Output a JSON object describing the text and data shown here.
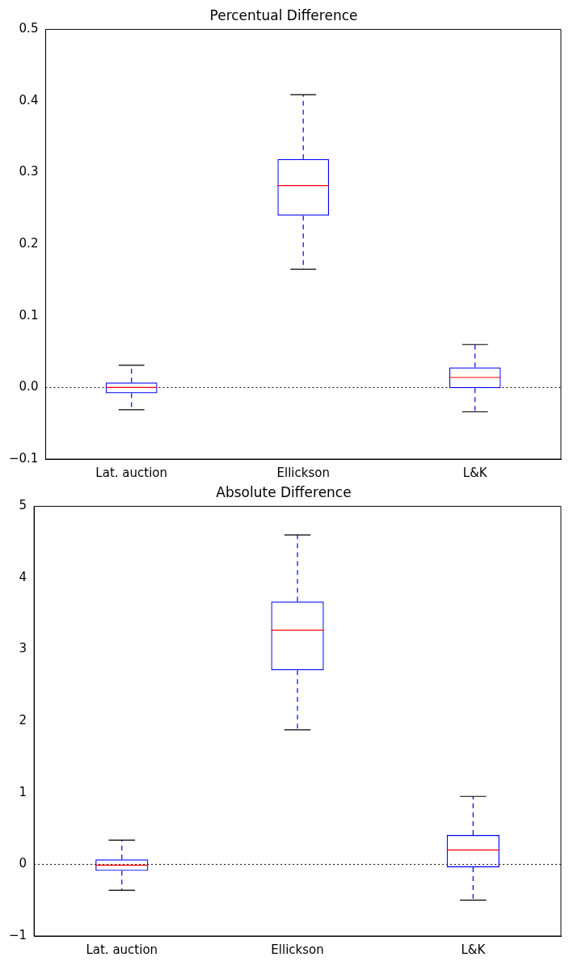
{
  "chart_data": [
    {
      "type": "box",
      "title": "Percentual Difference",
      "categories": [
        "Lat. auction",
        "Ellickson",
        "L&K"
      ],
      "ylim": [
        -0.1,
        0.5
      ],
      "yticks": [
        {
          "value": -0.1,
          "label": "−0.1"
        },
        {
          "value": 0,
          "label": "0.0"
        },
        {
          "value": 0.1,
          "label": "0.1"
        },
        {
          "value": 0.2,
          "label": "0.2"
        },
        {
          "value": 0.3,
          "label": "0.3"
        },
        {
          "value": 0.4,
          "label": "0.4"
        },
        {
          "value": 0.5,
          "label": "0.5"
        }
      ],
      "series": [
        {
          "color": "#0000ff",
          "boxes": [
            {
              "low": -0.031,
              "q1": -0.008,
              "median": 0.0,
              "q3": 0.007,
              "high": 0.031
            },
            {
              "low": 0.165,
              "q1": 0.24,
              "median": 0.282,
              "q3": 0.319,
              "high": 0.409
            },
            {
              "low": -0.034,
              "q1": -0.001,
              "median": 0.014,
              "q3": 0.028,
              "high": 0.06
            }
          ]
        }
      ],
      "ref_lines": [
        {
          "axis": "y",
          "value": 0,
          "color": "#000000",
          "line_style": "dotted"
        }
      ]
    },
    {
      "type": "box",
      "title": "Absolute Difference",
      "categories": [
        "Lat. auction",
        "Ellickson",
        "L&K"
      ],
      "ylim": [
        -1,
        5
      ],
      "yticks": [
        {
          "value": -1,
          "label": "−1"
        },
        {
          "value": 0,
          "label": "0"
        },
        {
          "value": 1,
          "label": "1"
        },
        {
          "value": 2,
          "label": "2"
        },
        {
          "value": 3,
          "label": "3"
        },
        {
          "value": 4,
          "label": "4"
        },
        {
          "value": 5,
          "label": "5"
        }
      ],
      "series": [
        {
          "color": "#0000ff",
          "boxes": [
            {
              "low": -0.36,
              "q1": -0.09,
              "median": -0.01,
              "q3": 0.07,
              "high": 0.34
            },
            {
              "low": 1.88,
              "q1": 2.71,
              "median": 3.27,
              "q3": 3.67,
              "high": 4.6
            },
            {
              "low": -0.5,
              "q1": -0.04,
              "median": 0.2,
              "q3": 0.41,
              "high": 0.95
            }
          ]
        }
      ],
      "ref_lines": [
        {
          "axis": "y",
          "value": 0,
          "color": "#000000",
          "line_style": "dotted"
        }
      ]
    }
  ]
}
